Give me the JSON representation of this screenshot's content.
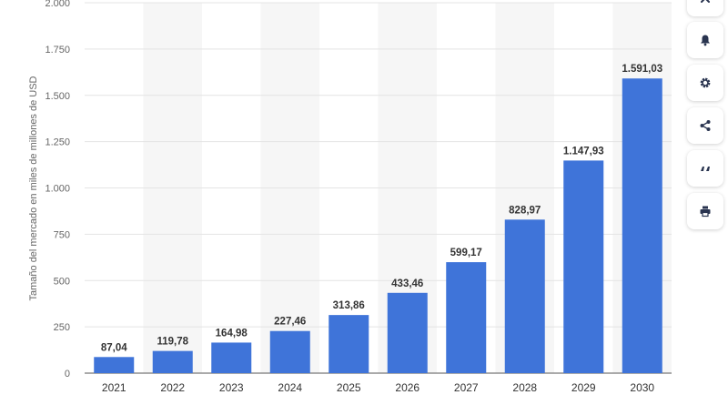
{
  "chart_data": {
    "type": "bar",
    "categories": [
      "2021",
      "2022",
      "2023",
      "2024",
      "2025",
      "2026",
      "2027",
      "2028",
      "2029",
      "2030"
    ],
    "values": [
      87.04,
      119.78,
      164.98,
      227.46,
      313.86,
      433.46,
      599.17,
      828.97,
      1147.93,
      1591.03
    ],
    "value_labels": [
      "87,04",
      "119,78",
      "164,98",
      "227,46",
      "313,86",
      "433,46",
      "599,17",
      "828,97",
      "1.147,93",
      "1.591,03"
    ],
    "ylabel": "Tamaño del mercado en miles de millones de USD",
    "ylim": [
      0,
      2000
    ],
    "yticks": [
      0,
      250,
      500,
      750,
      1000,
      1250,
      1500,
      1750,
      2000
    ],
    "ytick_labels": [
      "0",
      "250",
      "500",
      "750",
      "1.000",
      "1.250",
      "1.500",
      "1.750",
      "2.000"
    ],
    "bar_color": "#3f74d9",
    "grid": true,
    "alternating_column_shading": true
  },
  "toolbar": {
    "buttons": [
      {
        "icon": "close-icon",
        "name": "close-button"
      },
      {
        "icon": "bell-icon",
        "name": "notification-button"
      },
      {
        "icon": "gear-icon",
        "name": "settings-button"
      },
      {
        "icon": "share-icon",
        "name": "share-button"
      },
      {
        "icon": "quote-icon",
        "name": "cite-button"
      },
      {
        "icon": "print-icon",
        "name": "print-button"
      }
    ]
  }
}
